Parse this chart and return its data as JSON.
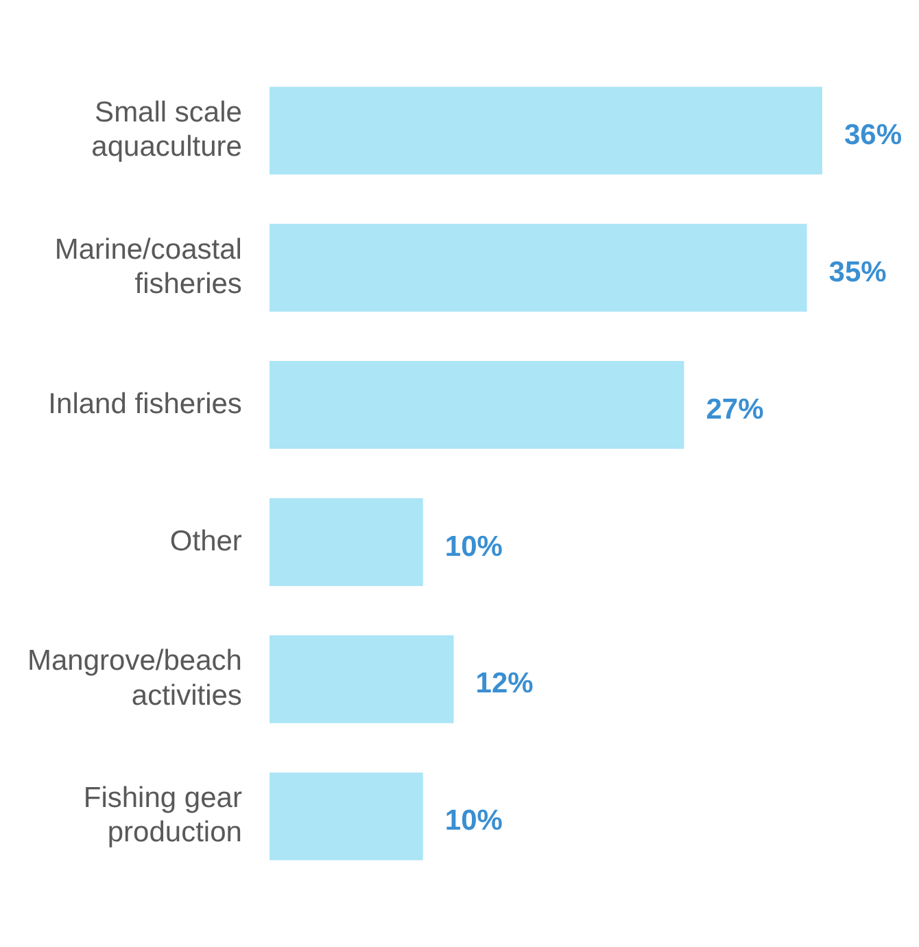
{
  "chart_data": {
    "type": "bar",
    "orientation": "horizontal",
    "categories": [
      "Small scale aquaculture",
      "Marine/coastal fisheries",
      "Inland fisheries",
      "Other",
      "Mangrove/beach activities",
      "Fishing gear production"
    ],
    "values": [
      36,
      35,
      27,
      10,
      12,
      10
    ],
    "value_labels": [
      "36%",
      "35%",
      "27%",
      "10%",
      "12%",
      "10%"
    ],
    "color": "#abe5f6",
    "legend": false,
    "grid": false
  }
}
